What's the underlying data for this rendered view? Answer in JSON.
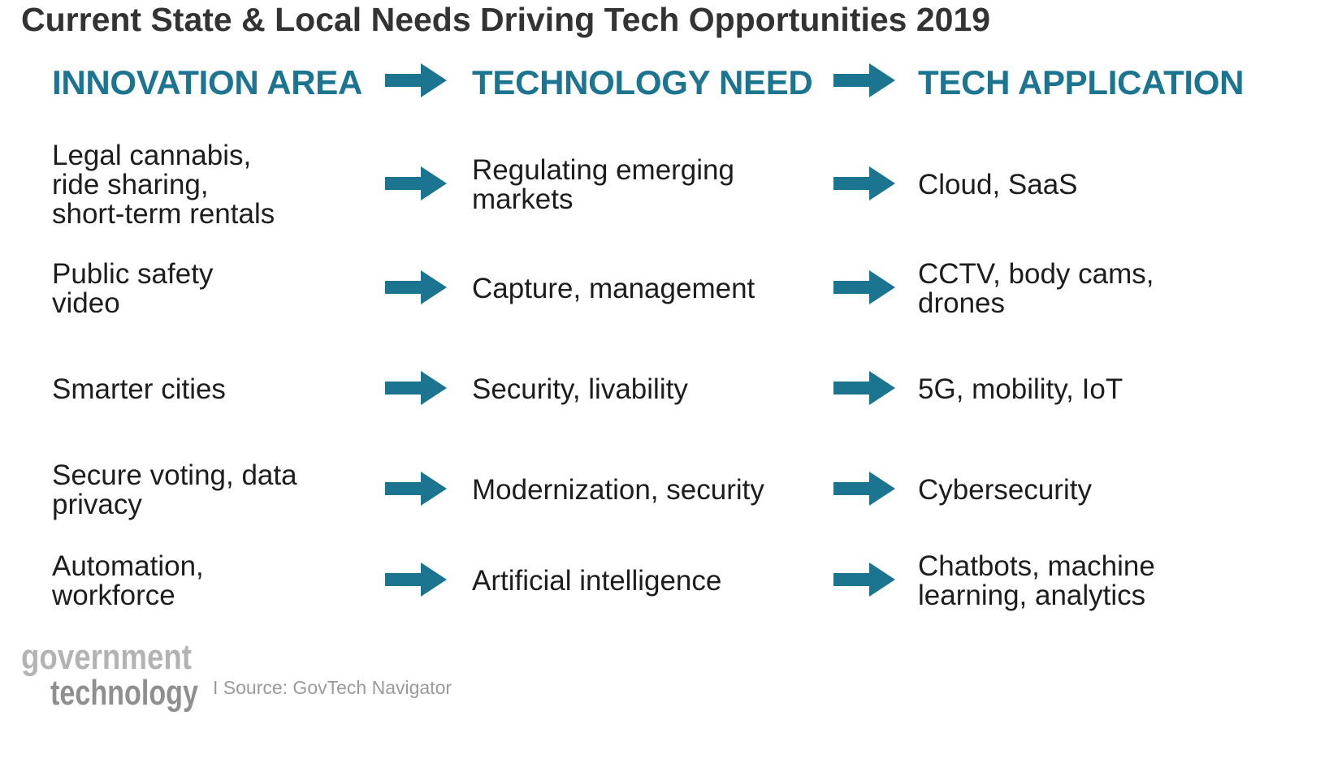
{
  "title": "Current State & Local Needs Driving Tech Opportunities 2019",
  "headers": {
    "innovation_area": "INNOVATION AREA",
    "technology_need": "TECHNOLOGY NEED",
    "tech_application": "TECH APPLICATION"
  },
  "rows": [
    {
      "area": [
        "Legal cannabis,",
        "ride sharing,",
        "short-term rentals"
      ],
      "need": [
        "Regulating emerging",
        "markets"
      ],
      "application": [
        "Cloud, SaaS"
      ]
    },
    {
      "area": [
        "Public safety",
        "video"
      ],
      "need": [
        "Capture, management"
      ],
      "application": [
        "CCTV, body cams,",
        "drones"
      ]
    },
    {
      "area": [
        "Smarter cities"
      ],
      "need": [
        "Security, livability"
      ],
      "application": [
        "5G, mobility, IoT"
      ]
    },
    {
      "area": [
        "Secure voting, data",
        "privacy"
      ],
      "need": [
        "Modernization, security"
      ],
      "application": [
        "Cybersecurity"
      ]
    },
    {
      "area": [
        "Automation,",
        "workforce"
      ],
      "need": [
        "Artificial intelligence"
      ],
      "application": [
        "Chatbots, machine",
        "learning, analytics"
      ]
    }
  ],
  "footer": {
    "logo_line1": "government",
    "logo_line2": "technology",
    "source": "I Source: GovTech Navigator"
  },
  "colors": {
    "accent": "#1b7490",
    "text": "#1d1d1f",
    "title": "#333333",
    "muted": "#9a9a9a"
  },
  "icons": [
    "right-arrow-icon"
  ]
}
